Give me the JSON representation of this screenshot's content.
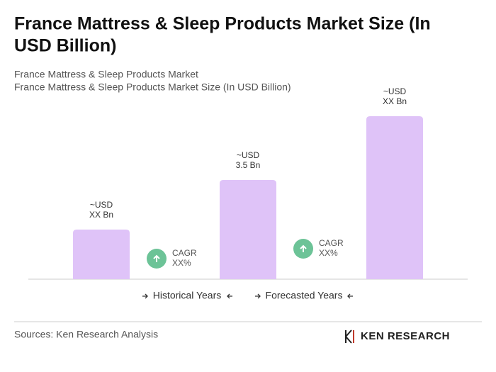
{
  "chart_data": {
    "type": "bar",
    "title": [
      "France Mattress & Sleep Products Market Size (In",
      "USD Billion)"
    ],
    "subtitle": [
      "France Mattress & Sleep Products Market",
      "France Mattress & Sleep Products Market Size (In USD Billion)"
    ],
    "categories": [
      null,
      null,
      null
    ],
    "values": [
      1.75,
      3.5,
      5.75
    ],
    "value_labels": [
      [
        "~USD",
        "XX Bn"
      ],
      [
        "~USD",
        "3.5 Bn"
      ],
      [
        "~USD",
        "XX Bn"
      ]
    ],
    "color": "#dfc3f8",
    "annotations": [
      [
        "CAGR",
        "XX%"
      ],
      [
        "CAGR",
        "XX%"
      ]
    ],
    "periods": [
      "Historical Years",
      "Forecasted Years"
    ],
    "source": "Sources: Ken Research Analysis",
    "logo": "KEN RESEARCH"
  }
}
